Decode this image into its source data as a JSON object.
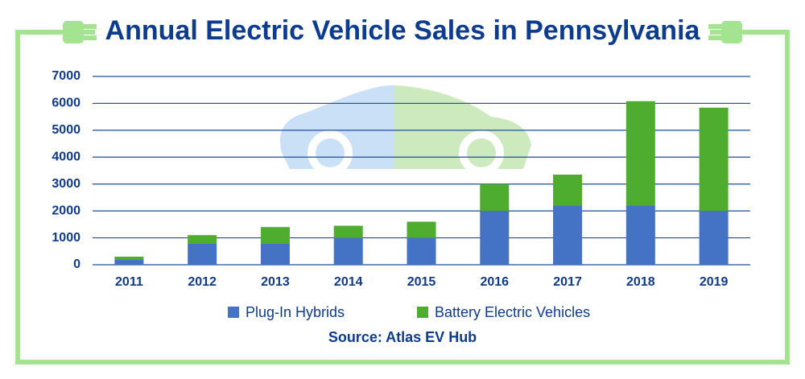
{
  "chart_data": {
    "type": "stacked_bar",
    "title": "Annual Electric Vehicle Sales in Pennsylvania",
    "source": "Source: Atlas EV Hub",
    "categories": [
      "2011",
      "2012",
      "2013",
      "2014",
      "2015",
      "2016",
      "2017",
      "2018",
      "2019"
    ],
    "series": [
      {
        "name": "Plug-In Hybrids",
        "color": "#4472c4",
        "values": [
          200,
          800,
          800,
          1000,
          1000,
          2000,
          2200,
          2200,
          2000
        ]
      },
      {
        "name": "Battery Electric Vehicles",
        "color": "#4ead2e",
        "values": [
          100,
          300,
          600,
          450,
          600,
          1000,
          1150,
          3880,
          3840
        ]
      }
    ],
    "ylim": [
      0,
      7000
    ],
    "yticks": [
      0,
      1000,
      2000,
      3000,
      4000,
      5000,
      6000,
      7000
    ],
    "grid": true
  }
}
